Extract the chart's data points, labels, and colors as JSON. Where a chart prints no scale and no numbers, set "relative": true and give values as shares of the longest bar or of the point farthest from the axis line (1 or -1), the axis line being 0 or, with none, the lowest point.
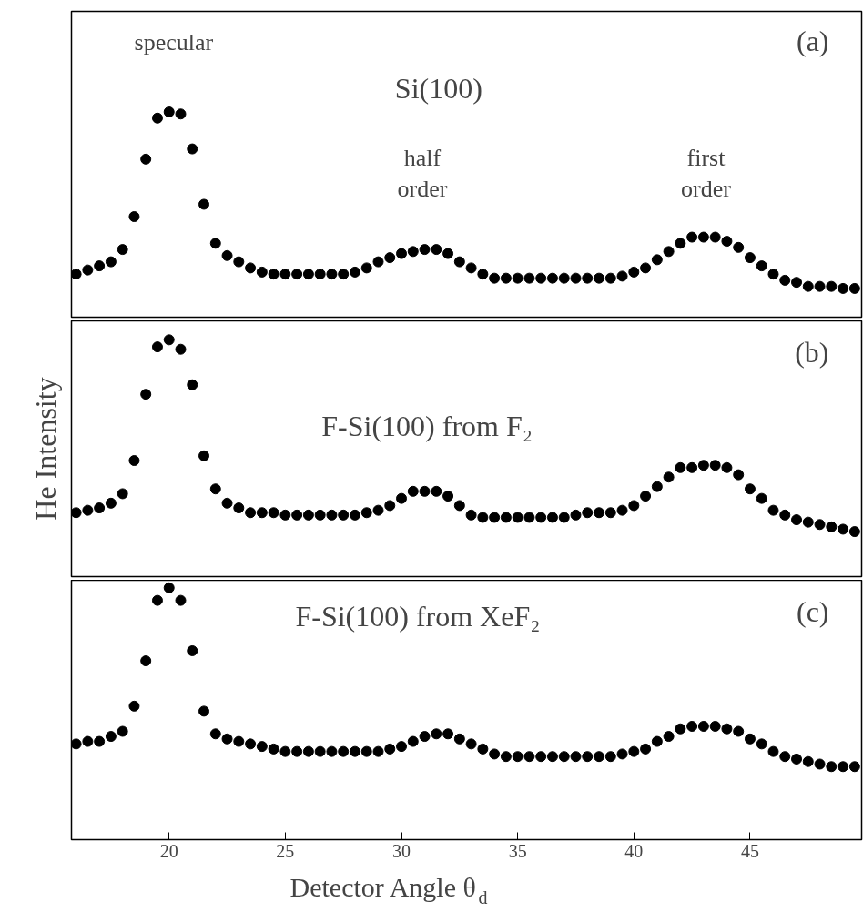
{
  "chart_data": [
    {
      "type": "scatter",
      "title": "Si(100)",
      "relative": true,
      "tick_labels": false,
      "marker": "circle",
      "grid": false,
      "x": [
        16,
        16.5,
        17,
        17.5,
        18,
        18.5,
        19,
        19.5,
        20,
        20.5,
        21,
        21.5,
        22,
        22.5,
        23,
        23.5,
        24,
        24.5,
        25,
        25.5,
        26,
        26.5,
        27,
        27.5,
        28,
        28.5,
        29,
        29.5,
        30,
        30.5,
        31,
        31.5,
        32,
        32.5,
        33,
        33.5,
        34,
        34.5,
        35,
        35.5,
        36,
        36.5,
        37,
        37.5,
        38,
        38.5,
        39,
        39.5,
        40,
        40.5,
        41,
        41.5,
        42,
        42.5,
        43,
        43.5,
        44,
        44.5,
        45,
        45.5,
        46,
        46.5,
        47,
        47.5,
        48,
        48.5,
        49,
        49.5
      ],
      "xlim": [
        15.8,
        49.8
      ],
      "series": [
        {
          "color": "#000000",
          "values": [
            0.21,
            0.23,
            0.25,
            0.27,
            0.33,
            0.49,
            0.77,
            0.97,
            1.0,
            0.99,
            0.82,
            0.55,
            0.36,
            0.3,
            0.27,
            0.24,
            0.22,
            0.21,
            0.21,
            0.21,
            0.21,
            0.21,
            0.21,
            0.21,
            0.22,
            0.24,
            0.27,
            0.29,
            0.31,
            0.32,
            0.33,
            0.33,
            0.31,
            0.27,
            0.24,
            0.21,
            0.19,
            0.19,
            0.19,
            0.19,
            0.19,
            0.19,
            0.19,
            0.19,
            0.19,
            0.19,
            0.19,
            0.2,
            0.22,
            0.24,
            0.28,
            0.32,
            0.36,
            0.39,
            0.39,
            0.39,
            0.37,
            0.34,
            0.29,
            0.25,
            0.21,
            0.18,
            0.17,
            0.15,
            0.15,
            0.15,
            0.14,
            0.14
          ]
        }
      ],
      "annotations": [
        "specular",
        "half\norder",
        "first\norder",
        "(a)"
      ]
    },
    {
      "type": "scatter",
      "title": "F-Si(100) from F₂",
      "ylabel": "He Intensity",
      "relative": true,
      "tick_labels": false,
      "marker": "circle",
      "grid": false,
      "x": [
        16,
        16.5,
        17,
        17.5,
        18,
        18.5,
        19,
        19.5,
        20,
        20.5,
        21,
        21.5,
        22,
        22.5,
        23,
        23.5,
        24,
        24.5,
        25,
        25.5,
        26,
        26.5,
        27,
        27.5,
        28,
        28.5,
        29,
        29.5,
        30,
        30.5,
        31,
        31.5,
        32,
        32.5,
        33,
        33.5,
        34,
        34.5,
        35,
        35.5,
        36,
        36.5,
        37,
        37.5,
        38,
        38.5,
        39,
        39.5,
        40,
        40.5,
        41,
        41.5,
        42,
        42.5,
        43,
        43.5,
        44,
        44.5,
        45,
        45.5,
        46,
        46.5,
        47,
        47.5,
        48,
        48.5,
        49,
        49.5
      ],
      "xlim": [
        15.8,
        49.8
      ],
      "series": [
        {
          "color": "#000000",
          "values": [
            0.27,
            0.28,
            0.29,
            0.31,
            0.35,
            0.49,
            0.77,
            0.97,
            1.0,
            0.96,
            0.81,
            0.51,
            0.37,
            0.31,
            0.29,
            0.27,
            0.27,
            0.27,
            0.26,
            0.26,
            0.26,
            0.26,
            0.26,
            0.26,
            0.26,
            0.27,
            0.28,
            0.3,
            0.33,
            0.36,
            0.36,
            0.36,
            0.34,
            0.3,
            0.26,
            0.25,
            0.25,
            0.25,
            0.25,
            0.25,
            0.25,
            0.25,
            0.25,
            0.26,
            0.27,
            0.27,
            0.27,
            0.28,
            0.3,
            0.34,
            0.38,
            0.42,
            0.46,
            0.46,
            0.47,
            0.47,
            0.46,
            0.43,
            0.37,
            0.33,
            0.28,
            0.26,
            0.24,
            0.23,
            0.22,
            0.21,
            0.2,
            0.19
          ]
        }
      ],
      "annotations": [
        "(b)"
      ]
    },
    {
      "type": "scatter",
      "title": "F-Si(100) from XeF₂",
      "xlabel": "Detector Angle θ$_{d}$",
      "relative": true,
      "tick_labels": "x",
      "marker": "circle",
      "grid": false,
      "x": [
        16,
        16.5,
        17,
        17.5,
        18,
        18.5,
        19,
        19.5,
        20,
        20.5,
        21,
        21.5,
        22,
        22.5,
        23,
        23.5,
        24,
        24.5,
        25,
        25.5,
        26,
        26.5,
        27,
        27.5,
        28,
        28.5,
        29,
        29.5,
        30,
        30.5,
        31,
        31.5,
        32,
        32.5,
        33,
        33.5,
        34,
        34.5,
        35,
        35.5,
        36,
        36.5,
        37,
        37.5,
        38,
        38.5,
        39,
        39.5,
        40,
        40.5,
        41,
        41.5,
        42,
        42.5,
        43,
        43.5,
        44,
        44.5,
        45,
        45.5,
        46,
        46.5,
        47,
        47.5,
        48,
        48.5,
        49,
        49.5
      ],
      "xlim": [
        15.8,
        49.8
      ],
      "xticks": [
        20,
        25,
        30,
        35,
        40,
        45
      ],
      "series": [
        {
          "color": "#000000",
          "values": [
            0.38,
            0.39,
            0.39,
            0.41,
            0.43,
            0.53,
            0.71,
            0.95,
            1.0,
            0.95,
            0.75,
            0.51,
            0.42,
            0.4,
            0.39,
            0.38,
            0.37,
            0.36,
            0.35,
            0.35,
            0.35,
            0.35,
            0.35,
            0.35,
            0.35,
            0.35,
            0.35,
            0.36,
            0.37,
            0.39,
            0.41,
            0.42,
            0.42,
            0.4,
            0.38,
            0.36,
            0.34,
            0.33,
            0.33,
            0.33,
            0.33,
            0.33,
            0.33,
            0.33,
            0.33,
            0.33,
            0.33,
            0.34,
            0.35,
            0.36,
            0.39,
            0.41,
            0.44,
            0.45,
            0.45,
            0.45,
            0.44,
            0.43,
            0.4,
            0.38,
            0.35,
            0.33,
            0.32,
            0.31,
            0.3,
            0.29,
            0.29,
            0.29
          ]
        }
      ],
      "annotations": [
        "(c)"
      ]
    }
  ]
}
